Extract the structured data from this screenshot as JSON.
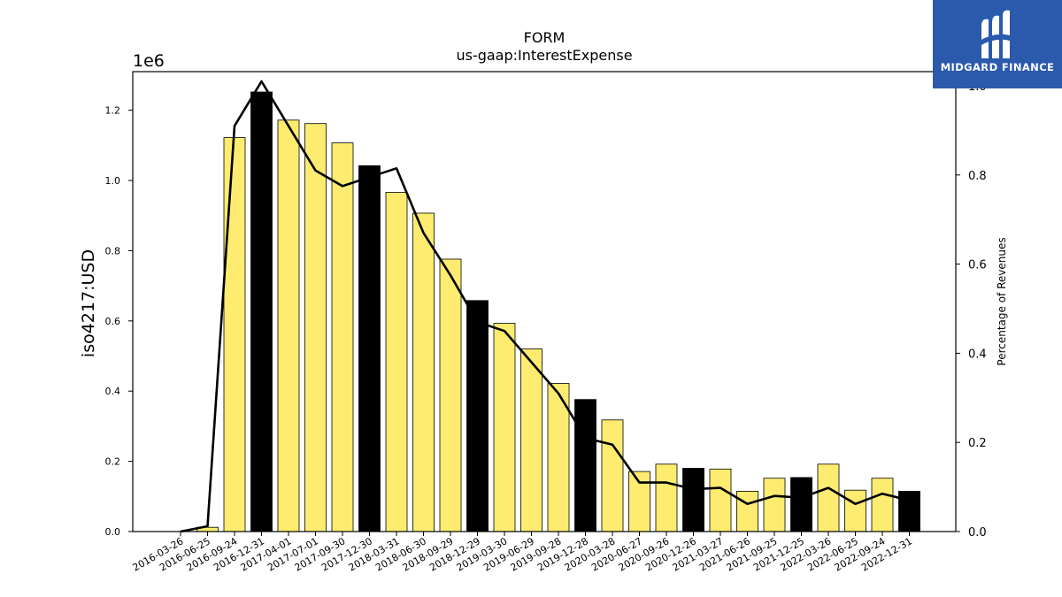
{
  "brand": {
    "name": "MIDGARD FINANCE",
    "accent": "#2b5aad"
  },
  "chart_data": {
    "type": "bar",
    "title": "FORM",
    "subtitle": "us-gaap:InterestExpense",
    "ylabel": "iso4217:USD",
    "y2label": "Percentage of Revenues",
    "y_offset_label": "1e6",
    "ylim": [
      0,
      1.31
    ],
    "y2lim": [
      0,
      1.0318
    ],
    "yticks": [
      "0.0",
      "0.2",
      "0.4",
      "0.6",
      "0.8",
      "1.0",
      "1.2"
    ],
    "y2ticks": [
      "0.0",
      "0.2",
      "0.4",
      "0.6",
      "0.8",
      "1.0"
    ],
    "categories": [
      "2016-03-26",
      "2016-06-25",
      "2016-09-24",
      "2016-12-31",
      "2017-04-01",
      "2017-07-01",
      "2017-09-30",
      "2017-12-30",
      "2018-03-31",
      "2018-06-30",
      "2018-09-29",
      "2018-12-29",
      "2019-03-30",
      "2019-06-29",
      "2019-09-28",
      "2019-12-28",
      "2020-03-28",
      "2020-06-27",
      "2020-09-26",
      "2020-12-26",
      "2021-03-27",
      "2021-06-26",
      "2021-09-25",
      "2021-12-25",
      "2022-03-26",
      "2022-06-25",
      "2022-09-24",
      "2022-12-31"
    ],
    "series": [
      {
        "kind": "bar",
        "values": [
          0,
          0.012,
          1.122,
          1.252,
          1.172,
          1.162,
          1.107,
          1.042,
          0.966,
          0.907,
          0.776,
          0.658,
          0.593,
          0.52,
          0.422,
          0.376,
          0.318,
          0.171,
          0.192,
          0.18,
          0.178,
          0.115,
          0.152,
          0.154,
          0.192,
          0.118,
          0.152,
          0.115
        ]
      },
      {
        "kind": "line",
        "axis": "right",
        "values": [
          0,
          0.012,
          0.91,
          1.01,
          0.91,
          0.81,
          0.775,
          0.795,
          0.815,
          0.67,
          0.575,
          0.47,
          0.45,
          0.38,
          0.31,
          0.21,
          0.195,
          0.11,
          0.11,
          0.095,
          0.098,
          0.062,
          0.08,
          0.076,
          0.098,
          0.062,
          0.085,
          0.07
        ]
      }
    ],
    "highlight_color": "#000000",
    "bar_color": "#fdec6f",
    "line_color": "#000000",
    "grid": false
  }
}
